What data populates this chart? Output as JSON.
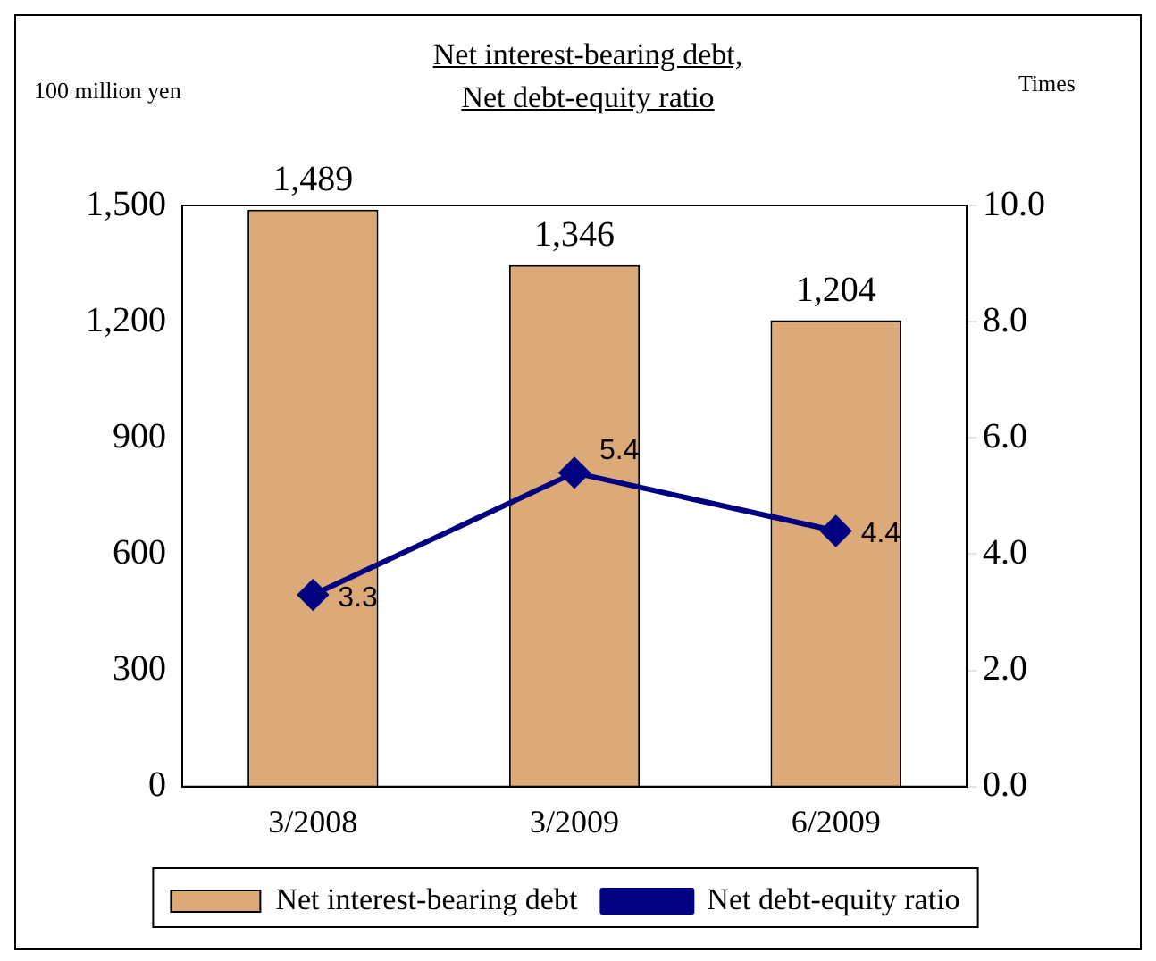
{
  "chart_data": {
    "type": "bar",
    "title": "Net interest-bearing debt,\nNet debt-equity ratio",
    "ylabel": "100 million yen",
    "y2label": "Times",
    "categories": [
      "3/2008",
      "3/2009",
      "6/2009"
    ],
    "series": [
      {
        "name": "Net interest-bearing debt",
        "color": "#dcaa78",
        "values": [
          1489,
          1346,
          1204
        ],
        "value_labels": [
          "1,489",
          "1,346",
          "1,204"
        ]
      },
      {
        "name": "Net debt-equity ratio",
        "type": "line",
        "axis": "y2",
        "color": "#000080",
        "marker": "diamond",
        "values": [
          3.3,
          5.4,
          4.4
        ],
        "value_labels": [
          "3.3",
          "5.4",
          "4.4"
        ]
      }
    ],
    "ylim": [
      0,
      1500
    ],
    "yticks": [
      0,
      300,
      600,
      900,
      {
        "value": 1200,
        "label": "1,200"
      },
      {
        "value": 1500,
        "label": "1,500"
      }
    ],
    "y2lim": [
      0,
      10
    ],
    "y2ticks": [
      {
        "value": 0,
        "label": "0.0"
      },
      {
        "value": 2,
        "label": "2.0"
      },
      {
        "value": 4,
        "label": "4.0"
      },
      {
        "value": 6,
        "label": "6.0"
      },
      {
        "value": 8,
        "label": "8.0"
      },
      {
        "value": 10,
        "label": "10.0"
      }
    ],
    "grid": false,
    "legend": "bottom"
  }
}
